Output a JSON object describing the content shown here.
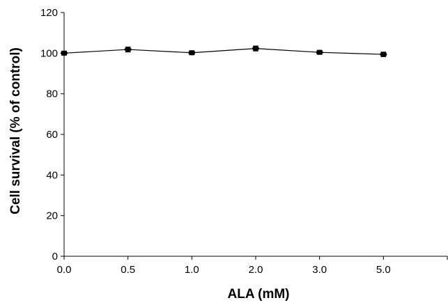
{
  "chart_data": {
    "type": "line",
    "title": "",
    "xlabel": "ALA (mM)",
    "ylabel": "Cell survival (% of control)",
    "categories": [
      "0.0",
      "0.5",
      "1.0",
      "2.0",
      "3.0",
      "5.0"
    ],
    "series": [
      {
        "values": [
          100,
          101.8,
          100.2,
          102.3,
          100.4,
          99.4
        ],
        "errors": [
          1.0,
          1.2,
          1.0,
          1.2,
          1.0,
          1.1
        ],
        "color": "#000000"
      }
    ],
    "ylim": [
      0,
      120
    ],
    "yticks": [
      "0",
      "20",
      "40",
      "60",
      "80",
      "100",
      "120"
    ],
    "grid": false,
    "legend": "none"
  }
}
